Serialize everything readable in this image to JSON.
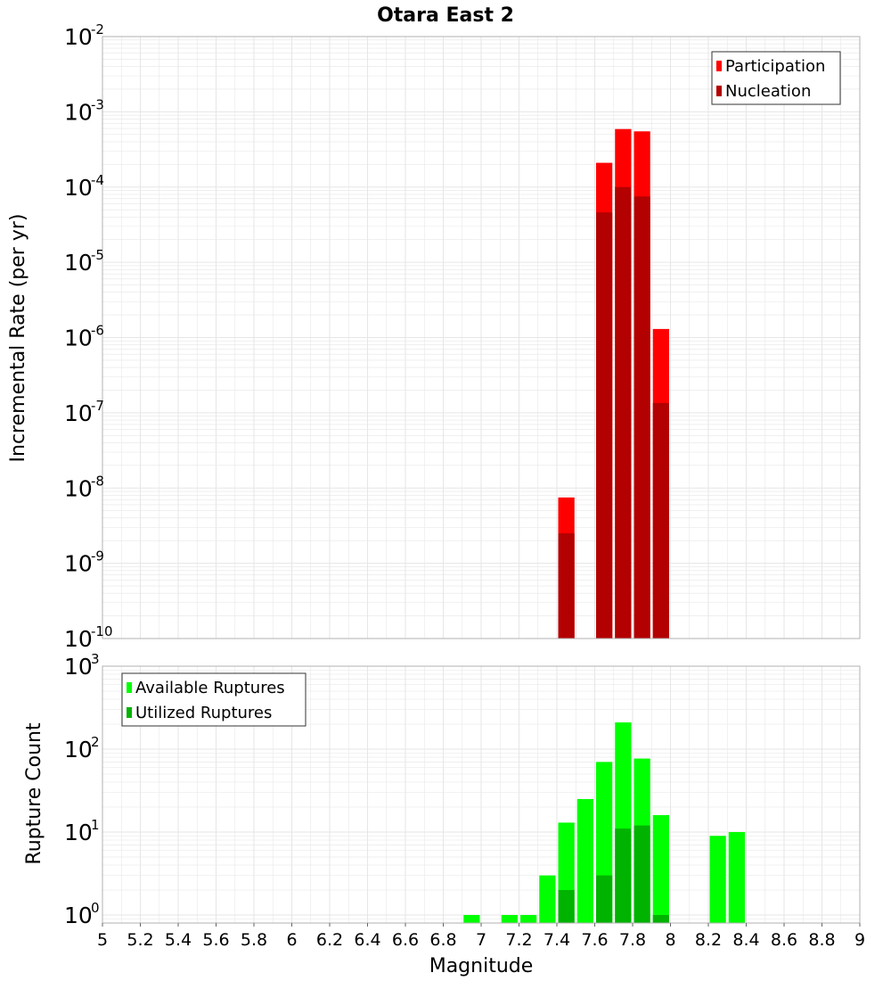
{
  "chart_data": [
    {
      "type": "bar",
      "title": "Otara East 2",
      "xlabel": "Magnitude",
      "ylabel": "Incremental Rate (per yr)",
      "yscale": "log",
      "ylim": [
        1e-10,
        0.01
      ],
      "xlim": [
        5,
        9
      ],
      "grid": true,
      "legend_position": "top-right",
      "bin_width": 0.1,
      "series": [
        {
          "name": "Participation",
          "color": "#ff0000",
          "points": [
            {
              "x": 7.45,
              "y": 7.5e-09
            },
            {
              "x": 7.65,
              "y": 0.00021
            },
            {
              "x": 7.75,
              "y": 0.00059
            },
            {
              "x": 7.85,
              "y": 0.00055
            },
            {
              "x": 7.95,
              "y": 1.3e-06
            }
          ]
        },
        {
          "name": "Nucleation",
          "color": "#b30000",
          "points": [
            {
              "x": 7.45,
              "y": 2.5e-09
            },
            {
              "x": 7.65,
              "y": 4.6e-05
            },
            {
              "x": 7.75,
              "y": 0.0001
            },
            {
              "x": 7.85,
              "y": 7.5e-05
            },
            {
              "x": 7.95,
              "y": 1.35e-07
            }
          ]
        }
      ],
      "ytick_labels": [
        {
          "value": 1e-10,
          "base": "10",
          "exp": "-10"
        },
        {
          "value": 1e-09,
          "base": "10",
          "exp": "-9"
        },
        {
          "value": 1e-08,
          "base": "10",
          "exp": "-8"
        },
        {
          "value": 1e-07,
          "base": "10",
          "exp": "-7"
        },
        {
          "value": 1e-06,
          "base": "10",
          "exp": "-6"
        },
        {
          "value": 1e-05,
          "base": "10",
          "exp": "-5"
        },
        {
          "value": 0.0001,
          "base": "10",
          "exp": "-4"
        },
        {
          "value": 0.001,
          "base": "10",
          "exp": "-3"
        },
        {
          "value": 0.01,
          "base": "10",
          "exp": "-2"
        }
      ]
    },
    {
      "type": "bar",
      "title": "",
      "xlabel": "Magnitude",
      "ylabel": "Rupture Count",
      "yscale": "log",
      "ylim": [
        0.8,
        1000
      ],
      "xlim": [
        5,
        9
      ],
      "grid": true,
      "legend_position": "top-left",
      "bin_width": 0.1,
      "series": [
        {
          "name": "Available Ruptures",
          "color": "#00ff00",
          "points": [
            {
              "x": 6.95,
              "y": 1
            },
            {
              "x": 7.15,
              "y": 1
            },
            {
              "x": 7.25,
              "y": 1
            },
            {
              "x": 7.35,
              "y": 3
            },
            {
              "x": 7.45,
              "y": 13
            },
            {
              "x": 7.55,
              "y": 25
            },
            {
              "x": 7.65,
              "y": 70
            },
            {
              "x": 7.75,
              "y": 210
            },
            {
              "x": 7.85,
              "y": 77
            },
            {
              "x": 7.95,
              "y": 16
            },
            {
              "x": 8.25,
              "y": 9
            },
            {
              "x": 8.35,
              "y": 10
            }
          ]
        },
        {
          "name": "Utilized Ruptures",
          "color": "#00b300",
          "points": [
            {
              "x": 7.45,
              "y": 2
            },
            {
              "x": 7.65,
              "y": 3
            },
            {
              "x": 7.75,
              "y": 11
            },
            {
              "x": 7.85,
              "y": 12
            },
            {
              "x": 7.95,
              "y": 1
            }
          ]
        }
      ],
      "ytick_labels": [
        {
          "value": 1,
          "base": "10",
          "exp": "0"
        },
        {
          "value": 10,
          "base": "10",
          "exp": "1"
        },
        {
          "value": 100,
          "base": "10",
          "exp": "2"
        },
        {
          "value": 1000,
          "base": "10",
          "exp": "3"
        }
      ]
    }
  ],
  "x_ticks": [
    {
      "value": 5,
      "label": "5"
    },
    {
      "value": 5.2,
      "label": "5.2"
    },
    {
      "value": 5.4,
      "label": "5.4"
    },
    {
      "value": 5.6,
      "label": "5.6"
    },
    {
      "value": 5.8,
      "label": "5.8"
    },
    {
      "value": 6,
      "label": "6"
    },
    {
      "value": 6.2,
      "label": "6.2"
    },
    {
      "value": 6.4,
      "label": "6.4"
    },
    {
      "value": 6.6,
      "label": "6.6"
    },
    {
      "value": 6.8,
      "label": "6.8"
    },
    {
      "value": 7,
      "label": "7"
    },
    {
      "value": 7.2,
      "label": "7.2"
    },
    {
      "value": 7.4,
      "label": "7.4"
    },
    {
      "value": 7.6,
      "label": "7.6"
    },
    {
      "value": 7.8,
      "label": "7.8"
    },
    {
      "value": 8,
      "label": "8"
    },
    {
      "value": 8.2,
      "label": "8.2"
    },
    {
      "value": 8.4,
      "label": "8.4"
    },
    {
      "value": 8.6,
      "label": "8.6"
    },
    {
      "value": 8.8,
      "label": "8.8"
    },
    {
      "value": 9,
      "label": "9"
    }
  ],
  "colors": {
    "grid": "#e6e6e6",
    "frame": "#b0b0b0",
    "background": "#ffffff"
  }
}
